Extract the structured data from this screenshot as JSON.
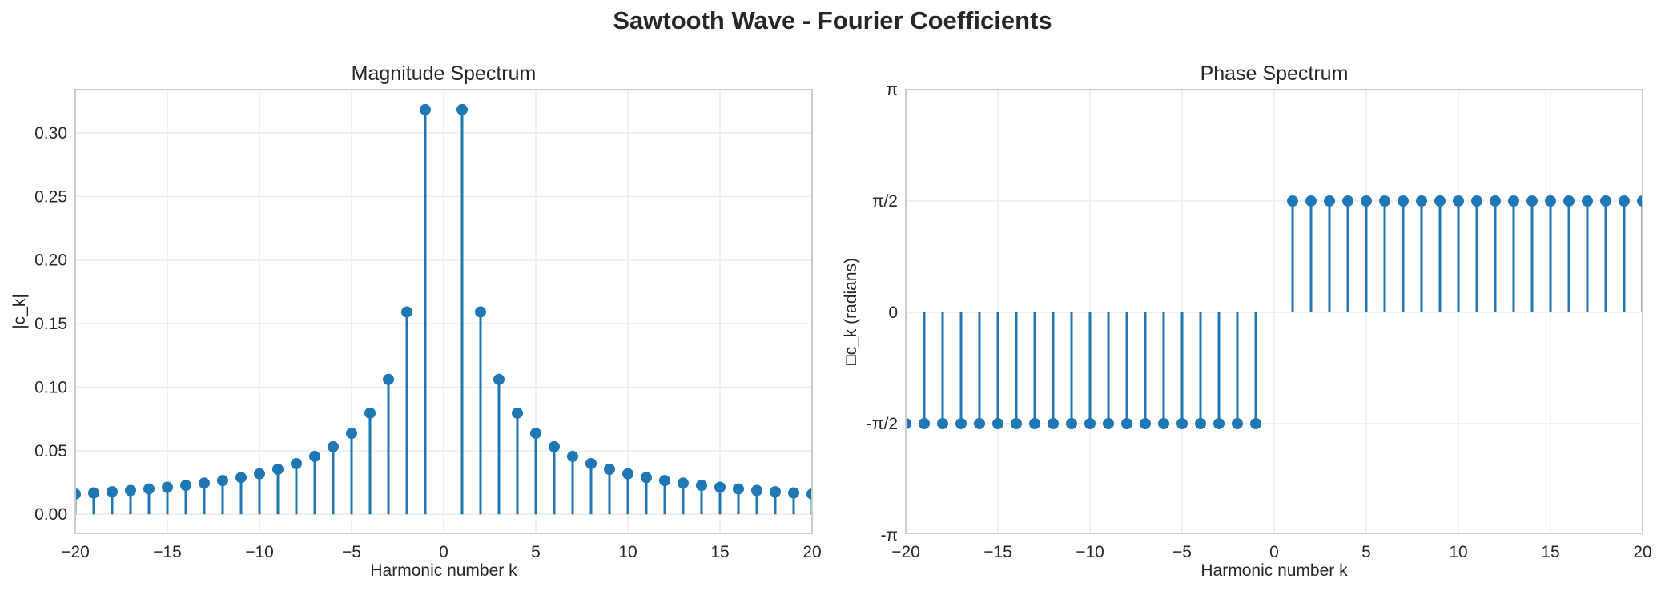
{
  "figure": {
    "title": "Sawtooth Wave - Fourier Coefficients",
    "stem_color": "#1f77b4",
    "grid_color": "#ebebeb",
    "spine_color": "#cccccc"
  },
  "chart_data": [
    {
      "type": "stem",
      "title": "Magnitude Spectrum",
      "xlabel": "Harmonic number k",
      "ylabel": "|c_k|",
      "xlim": [
        -20,
        20
      ],
      "ylim": [
        -0.015,
        0.334
      ],
      "grid": true,
      "xticks": [
        -20,
        -15,
        -10,
        -5,
        0,
        5,
        10,
        15,
        20
      ],
      "xtick_labels": [
        "−20",
        "−15",
        "−10",
        "−5",
        "0",
        "5",
        "10",
        "15",
        "20"
      ],
      "yticks": [
        0.0,
        0.05,
        0.1,
        0.15,
        0.2,
        0.25,
        0.3
      ],
      "ytick_labels": [
        "0.00",
        "0.05",
        "0.10",
        "0.15",
        "0.20",
        "0.25",
        "0.30"
      ],
      "x": [
        -20,
        -19,
        -18,
        -17,
        -16,
        -15,
        -14,
        -13,
        -12,
        -11,
        -10,
        -9,
        -8,
        -7,
        -6,
        -5,
        -4,
        -3,
        -2,
        -1,
        1,
        2,
        3,
        4,
        5,
        6,
        7,
        8,
        9,
        10,
        11,
        12,
        13,
        14,
        15,
        16,
        17,
        18,
        19,
        20
      ],
      "values": [
        0.0159,
        0.0168,
        0.0177,
        0.0187,
        0.0199,
        0.0212,
        0.0227,
        0.0245,
        0.0265,
        0.0289,
        0.0318,
        0.0354,
        0.0398,
        0.0455,
        0.0531,
        0.0637,
        0.0796,
        0.1061,
        0.1592,
        0.3183,
        0.3183,
        0.1592,
        0.1061,
        0.0796,
        0.0637,
        0.0531,
        0.0455,
        0.0398,
        0.0354,
        0.0318,
        0.0289,
        0.0265,
        0.0245,
        0.0227,
        0.0212,
        0.0199,
        0.0187,
        0.0177,
        0.0168,
        0.0159
      ]
    },
    {
      "type": "stem",
      "title": "Phase Spectrum",
      "xlabel": "Harmonic number k",
      "ylabel": "□c_k (radians)",
      "xlim": [
        -20,
        20
      ],
      "ylim": [
        -3.1416,
        3.1416
      ],
      "grid": true,
      "xticks": [
        -20,
        -15,
        -10,
        -5,
        0,
        5,
        10,
        15,
        20
      ],
      "xtick_labels": [
        "−20",
        "−15",
        "−10",
        "−5",
        "0",
        "5",
        "10",
        "15",
        "20"
      ],
      "yticks": [
        -3.1416,
        -1.5708,
        0,
        1.5708,
        3.1416
      ],
      "ytick_labels": [
        "-π",
        "-π/2",
        "0",
        "π/2",
        "π"
      ],
      "x": [
        -20,
        -19,
        -18,
        -17,
        -16,
        -15,
        -14,
        -13,
        -12,
        -11,
        -10,
        -9,
        -8,
        -7,
        -6,
        -5,
        -4,
        -3,
        -2,
        -1,
        1,
        2,
        3,
        4,
        5,
        6,
        7,
        8,
        9,
        10,
        11,
        12,
        13,
        14,
        15,
        16,
        17,
        18,
        19,
        20
      ],
      "values": [
        -1.5708,
        -1.5708,
        -1.5708,
        -1.5708,
        -1.5708,
        -1.5708,
        -1.5708,
        -1.5708,
        -1.5708,
        -1.5708,
        -1.5708,
        -1.5708,
        -1.5708,
        -1.5708,
        -1.5708,
        -1.5708,
        -1.5708,
        -1.5708,
        -1.5708,
        -1.5708,
        1.5708,
        1.5708,
        1.5708,
        1.5708,
        1.5708,
        1.5708,
        1.5708,
        1.5708,
        1.5708,
        1.5708,
        1.5708,
        1.5708,
        1.5708,
        1.5708,
        1.5708,
        1.5708,
        1.5708,
        1.5708,
        1.5708,
        1.5708
      ]
    }
  ]
}
